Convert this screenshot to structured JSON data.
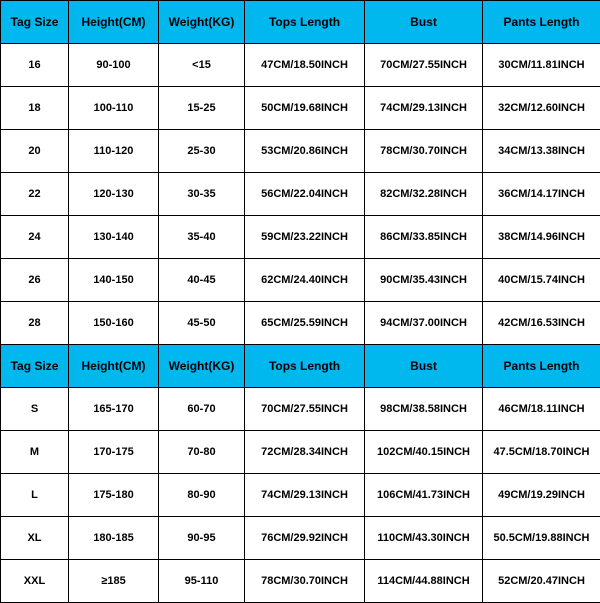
{
  "table": {
    "header_bg": "#00b7ee",
    "border_color": "#000000",
    "columns": [
      "Tag Size",
      "Height(CM)",
      "Weight(KG)",
      "Tops Length",
      "Bust",
      "Pants Length"
    ],
    "section1_rows": [
      [
        "16",
        "90-100",
        "<15",
        "47CM/18.50INCH",
        "70CM/27.55INCH",
        "30CM/11.81INCH"
      ],
      [
        "18",
        "100-110",
        "15-25",
        "50CM/19.68INCH",
        "74CM/29.13INCH",
        "32CM/12.60INCH"
      ],
      [
        "20",
        "110-120",
        "25-30",
        "53CM/20.86INCH",
        "78CM/30.70INCH",
        "34CM/13.38INCH"
      ],
      [
        "22",
        "120-130",
        "30-35",
        "56CM/22.04INCH",
        "82CM/32.28INCH",
        "36CM/14.17INCH"
      ],
      [
        "24",
        "130-140",
        "35-40",
        "59CM/23.22INCH",
        "86CM/33.85INCH",
        "38CM/14.96INCH"
      ],
      [
        "26",
        "140-150",
        "40-45",
        "62CM/24.40INCH",
        "90CM/35.43INCH",
        "40CM/15.74INCH"
      ],
      [
        "28",
        "150-160",
        "45-50",
        "65CM/25.59INCH",
        "94CM/37.00INCH",
        "42CM/16.53INCH"
      ]
    ],
    "section2_rows": [
      [
        "S",
        "165-170",
        "60-70",
        "70CM/27.55INCH",
        "98CM/38.58INCH",
        "46CM/18.11INCH"
      ],
      [
        "M",
        "170-175",
        "70-80",
        "72CM/28.34INCH",
        "102CM/40.15INCH",
        "47.5CM/18.70INCH"
      ],
      [
        "L",
        "175-180",
        "80-90",
        "74CM/29.13INCH",
        "106CM/41.73INCH",
        "49CM/19.29INCH"
      ],
      [
        "XL",
        "180-185",
        "90-95",
        "76CM/29.92INCH",
        "110CM/43.30INCH",
        "50.5CM/19.88INCH"
      ],
      [
        "XXL",
        "≥185",
        "95-110",
        "78CM/30.70INCH",
        "114CM/44.88INCH",
        "52CM/20.47INCH"
      ]
    ]
  }
}
